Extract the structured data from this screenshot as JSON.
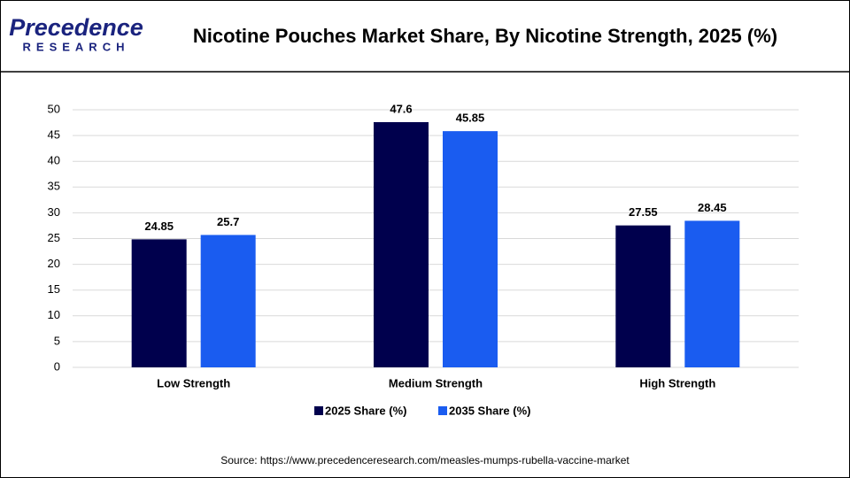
{
  "logo": {
    "name": "Precedence",
    "sub": "RESEARCH"
  },
  "chart_data": {
    "type": "bar",
    "title": "Nicotine Pouches Market Share, By Nicotine Strength, 2025 (%)",
    "categories": [
      "Low Strength",
      "Medium Strength",
      "High Strength"
    ],
    "series": [
      {
        "name": "2025 Share (%)",
        "color": "#00004d",
        "values": [
          24.85,
          47.6,
          27.55
        ]
      },
      {
        "name": "2035 Share (%)",
        "color": "#1a5cf0",
        "values": [
          25.7,
          45.85,
          28.45
        ]
      }
    ],
    "ylim": [
      0,
      50
    ],
    "yticks": [
      0,
      5,
      10,
      15,
      20,
      25,
      30,
      35,
      40,
      45,
      50
    ],
    "grid": true,
    "legend": "bottom"
  },
  "source": "Source: https://www.precedenceresearch.com/measles-mumps-rubella-vaccine-market"
}
